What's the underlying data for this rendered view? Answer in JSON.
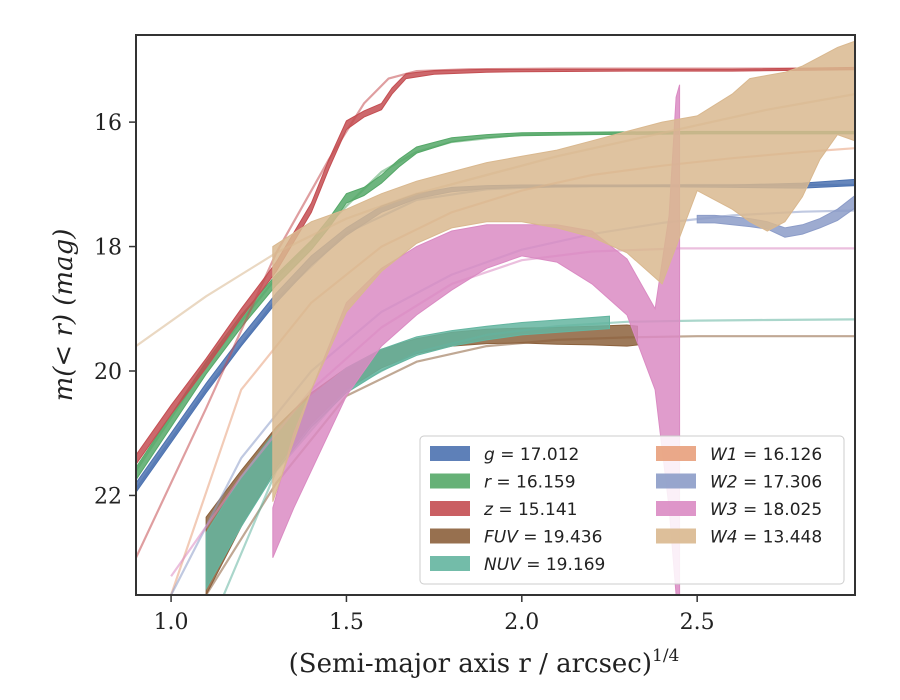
{
  "chart_data": {
    "type": "area",
    "xlabel": "(Semi-major axis r / arcsec)",
    "xlabel_sup": "1/4",
    "ylabel": "m(< r) (mag)",
    "xlim": [
      0.9,
      2.95
    ],
    "ylim": [
      23.6,
      14.6
    ],
    "y_inverted": true,
    "xticks": [
      1.0,
      1.5,
      2.0,
      2.5
    ],
    "xtick_labels": [
      "1.0",
      "1.5",
      "2.0",
      "2.5"
    ],
    "yticks": [
      16,
      18,
      20,
      22
    ],
    "ytick_labels": [
      "16",
      "18",
      "20",
      "22"
    ],
    "grid": false,
    "legend_position": "lower-right",
    "legend_columns": 2,
    "series": [
      {
        "name": "g = 17.012",
        "legend_main": "g",
        "legend_value": "= 17.012",
        "color": "#4c72b0",
        "band_x": [
          0.9,
          1.0,
          1.1,
          1.2,
          1.3,
          1.4,
          1.5,
          1.6,
          1.7,
          1.8,
          1.9,
          2.0,
          2.2,
          2.4,
          2.6,
          2.8,
          2.95
        ],
        "band_upper": [
          21.8,
          21.0,
          20.2,
          19.45,
          18.75,
          18.15,
          17.7,
          17.35,
          17.15,
          17.05,
          17.02,
          17.01,
          17.01,
          17.01,
          17.01,
          16.98,
          16.92
        ],
        "band_lower": [
          21.95,
          21.15,
          20.35,
          19.6,
          18.9,
          18.3,
          17.82,
          17.45,
          17.23,
          17.12,
          17.07,
          17.05,
          17.04,
          17.04,
          17.05,
          17.06,
          17.02
        ],
        "model_x": [
          0.9,
          1.1,
          1.3,
          1.5,
          1.7,
          1.9,
          2.1,
          2.3,
          2.5,
          2.7,
          2.95
        ],
        "model_y": [
          21.9,
          20.3,
          18.85,
          17.78,
          17.25,
          17.08,
          17.03,
          17.02,
          17.01,
          17.01,
          17.01
        ]
      },
      {
        "name": "r = 16.159",
        "legend_main": "r",
        "legend_value": "= 16.159",
        "color": "#55a868",
        "band_x": [
          0.9,
          1.0,
          1.1,
          1.2,
          1.3,
          1.4,
          1.45,
          1.5,
          1.55,
          1.6,
          1.65,
          1.7,
          1.8,
          1.9,
          2.0,
          2.2,
          2.5,
          2.8,
          2.95
        ],
        "band_upper": [
          21.55,
          20.7,
          19.85,
          19.1,
          18.45,
          17.9,
          17.55,
          17.15,
          17.05,
          16.85,
          16.6,
          16.4,
          16.25,
          16.2,
          16.17,
          16.16,
          16.15,
          16.15,
          16.15
        ],
        "band_lower": [
          21.75,
          20.9,
          20.05,
          19.3,
          18.62,
          18.05,
          17.7,
          17.3,
          17.18,
          16.98,
          16.72,
          16.5,
          16.32,
          16.25,
          16.22,
          16.2,
          16.19,
          16.19,
          16.19
        ],
        "model_x": [
          0.9,
          1.1,
          1.3,
          1.5,
          1.6,
          1.7,
          1.8,
          2.0,
          2.3,
          2.6,
          2.95
        ],
        "model_y": [
          21.6,
          19.9,
          18.5,
          17.35,
          16.8,
          16.48,
          16.32,
          16.2,
          16.17,
          16.16,
          16.16
        ]
      },
      {
        "name": "z = 15.141",
        "legend_main": "z",
        "legend_value": "= 15.141",
        "color": "#c44e52",
        "band_x": [
          0.9,
          1.0,
          1.1,
          1.2,
          1.3,
          1.4,
          1.45,
          1.5,
          1.55,
          1.6,
          1.63,
          1.67,
          1.75,
          1.9,
          2.0,
          2.3,
          2.6,
          2.95
        ],
        "band_upper": [
          21.35,
          20.55,
          19.8,
          19.0,
          18.25,
          17.3,
          16.6,
          15.98,
          15.82,
          15.7,
          15.45,
          15.22,
          15.17,
          15.15,
          15.15,
          15.15,
          15.15,
          15.12
        ],
        "band_lower": [
          21.5,
          20.7,
          19.95,
          19.15,
          18.4,
          17.45,
          16.75,
          16.12,
          15.92,
          15.8,
          15.55,
          15.3,
          15.23,
          15.2,
          15.19,
          15.18,
          15.18,
          15.16
        ],
        "model_x": [
          0.9,
          1.1,
          1.3,
          1.45,
          1.55,
          1.62,
          1.7,
          1.85,
          2.1,
          2.5,
          2.95
        ],
        "model_y": [
          23.0,
          20.6,
          18.1,
          16.6,
          15.7,
          15.3,
          15.18,
          15.15,
          15.14,
          15.14,
          15.14
        ]
      },
      {
        "name": "FUV = 19.436",
        "legend_main": "FUV",
        "legend_value": "= 19.436",
        "color": "#8c613c",
        "band_x": [
          1.1,
          1.2,
          1.3,
          1.4,
          1.5,
          1.6,
          1.7,
          1.8,
          1.9,
          2.0,
          2.1,
          2.2,
          2.3,
          2.33
        ],
        "band_upper": [
          22.35,
          21.6,
          20.9,
          20.35,
          19.95,
          19.65,
          19.48,
          19.38,
          19.33,
          19.31,
          19.3,
          19.28,
          19.26,
          19.28
        ],
        "band_lower": [
          23.6,
          22.5,
          21.55,
          20.85,
          20.3,
          19.95,
          19.72,
          19.6,
          19.56,
          19.55,
          19.57,
          19.58,
          19.6,
          19.58
        ],
        "model_x": [
          1.1,
          1.3,
          1.5,
          1.7,
          1.9,
          2.1,
          2.3,
          2.5,
          2.7,
          2.95
        ],
        "model_y": [
          23.6,
          21.8,
          20.4,
          19.85,
          19.6,
          19.5,
          19.46,
          19.44,
          19.44,
          19.44
        ]
      },
      {
        "name": "NUV = 19.169",
        "legend_main": "NUV",
        "legend_value": "= 19.169",
        "color": "#64b5a0",
        "band_x": [
          1.1,
          1.2,
          1.3,
          1.4,
          1.5,
          1.6,
          1.7,
          1.8,
          1.9,
          2.0,
          2.1,
          2.2,
          2.25
        ],
        "band_upper": [
          22.6,
          21.7,
          20.95,
          20.4,
          19.95,
          19.65,
          19.45,
          19.35,
          19.28,
          19.22,
          19.18,
          19.14,
          19.12
        ],
        "band_lower": [
          23.5,
          22.5,
          21.6,
          20.9,
          20.35,
          20.0,
          19.75,
          19.6,
          19.5,
          19.42,
          19.38,
          19.34,
          19.32
        ],
        "model_x": [
          1.15,
          1.3,
          1.5,
          1.7,
          1.9,
          2.1,
          2.3,
          2.5,
          2.7,
          2.95
        ],
        "model_y": [
          23.6,
          21.6,
          20.3,
          19.7,
          19.42,
          19.28,
          19.21,
          19.19,
          19.18,
          19.17
        ]
      },
      {
        "name": "W1 = 16.126",
        "legend_main": "W1",
        "legend_value": "= 16.126",
        "color": "#e8a07c",
        "band_x": [],
        "band_upper": [],
        "band_lower": [],
        "model_x": [
          1.0,
          1.2,
          1.4,
          1.6,
          1.8,
          2.0,
          2.2,
          2.4,
          2.6,
          2.8,
          2.95
        ],
        "model_y": [
          23.6,
          20.3,
          18.9,
          18.0,
          17.45,
          17.1,
          16.85,
          16.7,
          16.58,
          16.48,
          16.42
        ]
      },
      {
        "name": "W2 = 17.306",
        "legend_main": "W2",
        "legend_value": "= 17.306",
        "color": "#8c9cc8",
        "band_x": [
          2.5,
          2.55,
          2.6,
          2.65,
          2.7,
          2.75,
          2.8,
          2.85,
          2.9,
          2.95
        ],
        "band_upper": [
          17.5,
          17.5,
          17.52,
          17.55,
          17.6,
          17.7,
          17.65,
          17.55,
          17.4,
          17.18
        ],
        "band_lower": [
          17.62,
          17.62,
          17.65,
          17.68,
          17.72,
          17.85,
          17.8,
          17.7,
          17.58,
          17.38
        ],
        "model_x": [
          1.0,
          1.2,
          1.4,
          1.6,
          1.8,
          2.0,
          2.2,
          2.4,
          2.6,
          2.8,
          2.95
        ],
        "model_y": [
          23.6,
          21.4,
          20.0,
          19.05,
          18.45,
          18.05,
          17.8,
          17.62,
          17.5,
          17.44,
          17.42
        ]
      },
      {
        "name": "W3 = 18.025",
        "legend_main": "W3",
        "legend_value": "= 18.025",
        "color": "#da8bc3",
        "band_x": [
          1.29,
          1.35,
          1.4,
          1.5,
          1.6,
          1.7,
          1.8,
          1.9,
          2.0,
          2.1,
          2.2,
          2.3,
          2.38,
          2.42,
          2.44,
          2.45
        ],
        "band_upper": [
          22.2,
          21.0,
          20.3,
          18.9,
          18.35,
          18.0,
          17.75,
          17.65,
          17.65,
          17.65,
          17.75,
          18.2,
          19.0,
          17.5,
          15.6,
          15.4
        ],
        "band_lower": [
          23.0,
          22.2,
          21.6,
          20.4,
          19.6,
          19.1,
          18.7,
          18.35,
          18.15,
          18.25,
          18.6,
          19.1,
          20.3,
          22.2,
          23.6,
          23.6
        ],
        "model_x": [
          1.0,
          1.2,
          1.4,
          1.6,
          1.8,
          2.0,
          2.2,
          2.45,
          2.6,
          2.8,
          2.95
        ],
        "model_y": [
          23.3,
          21.7,
          20.3,
          19.3,
          18.6,
          18.22,
          18.08,
          18.03,
          18.03,
          18.03,
          18.03
        ]
      },
      {
        "name": "W4 = 13.448",
        "legend_main": "W4",
        "legend_value": "= 13.448",
        "color": "#d9b88f",
        "band_x": [
          1.29,
          1.4,
          1.5,
          1.6,
          1.7,
          1.8,
          1.9,
          2.0,
          2.1,
          2.2,
          2.3,
          2.4,
          2.5,
          2.6,
          2.65,
          2.7,
          2.75,
          2.8,
          2.85,
          2.9,
          2.95
        ],
        "band_upper": [
          18.0,
          17.6,
          17.4,
          17.15,
          16.95,
          16.8,
          16.65,
          16.55,
          16.45,
          16.3,
          16.15,
          16.0,
          15.9,
          15.55,
          15.3,
          15.25,
          15.2,
          15.1,
          14.95,
          14.8,
          14.7
        ],
        "band_lower": [
          22.1,
          20.3,
          19.05,
          18.4,
          17.95,
          17.7,
          17.6,
          17.6,
          17.7,
          17.85,
          18.1,
          18.6,
          17.1,
          17.4,
          17.6,
          17.75,
          17.6,
          17.2,
          16.6,
          16.2,
          16.3
        ],
        "model_x": [
          0.9,
          1.1,
          1.3,
          1.5,
          1.7,
          1.9,
          2.1,
          2.3,
          2.5,
          2.7,
          2.95
        ],
        "model_y": [
          19.6,
          18.8,
          18.1,
          17.55,
          17.15,
          16.85,
          16.55,
          16.3,
          16.05,
          15.8,
          15.55
        ]
      }
    ]
  }
}
